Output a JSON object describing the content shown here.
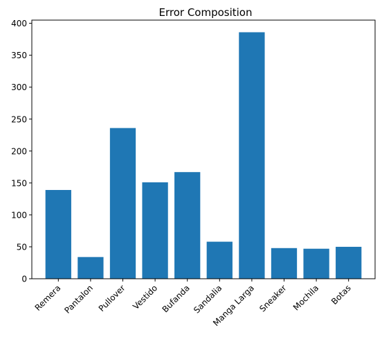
{
  "chart_data": {
    "type": "bar",
    "title": "Error Composition",
    "xlabel": "",
    "ylabel": "",
    "categories": [
      "Remera",
      "Pantalon",
      "Pullover",
      "Vestido",
      "Bufanda",
      "Sandalia",
      "Manga Larga",
      "Sneaker",
      "Mochila",
      "Botas"
    ],
    "values": [
      139,
      34,
      236,
      151,
      167,
      58,
      386,
      48,
      47,
      50
    ],
    "ylim": [
      0,
      405
    ],
    "yticks": [
      0,
      50,
      100,
      150,
      200,
      250,
      300,
      350,
      400
    ],
    "bar_color": "#1f77b4",
    "grid": false,
    "legend": "none",
    "xtick_rotation_degrees": 45
  }
}
